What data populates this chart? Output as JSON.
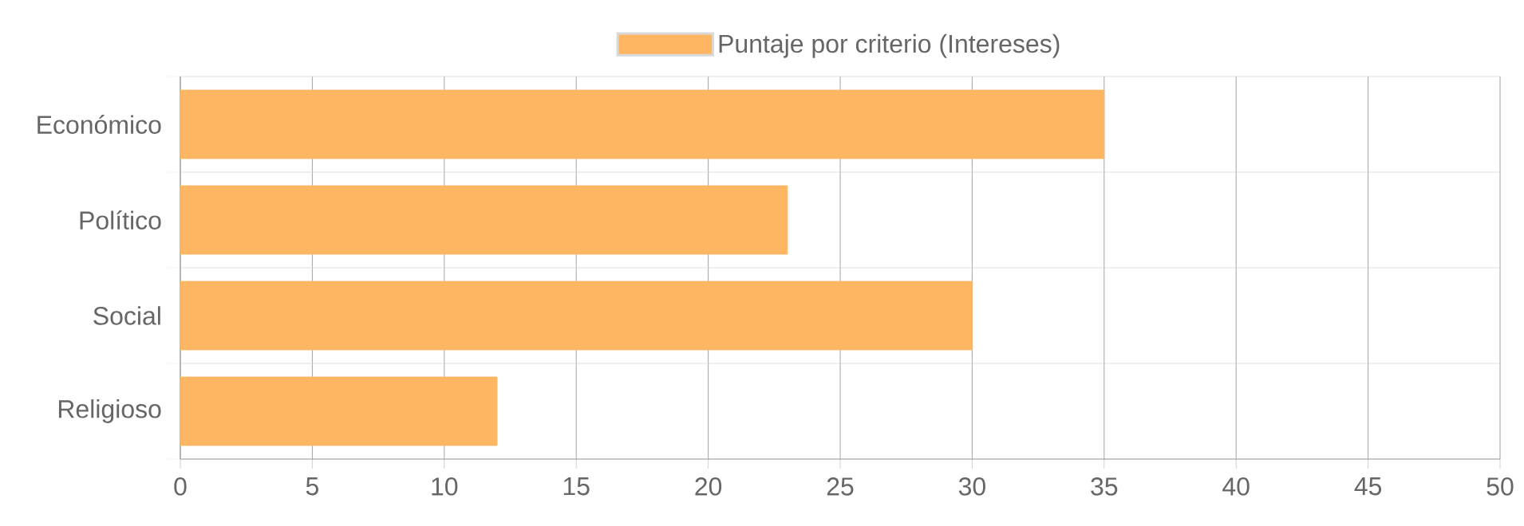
{
  "chart_data": {
    "type": "bar",
    "orientation": "horizontal",
    "categories": [
      "Económico",
      "Político",
      "Social",
      "Religioso"
    ],
    "series": [
      {
        "name": "Puntaje por criterio (Intereses)",
        "color": "#ffb662",
        "values": [
          35,
          23,
          30,
          12
        ]
      }
    ],
    "xlim": [
      0,
      50
    ],
    "xticks": [
      0,
      5,
      10,
      15,
      20,
      25,
      30,
      35,
      40,
      45,
      50
    ],
    "grid": true,
    "legend": "top"
  }
}
